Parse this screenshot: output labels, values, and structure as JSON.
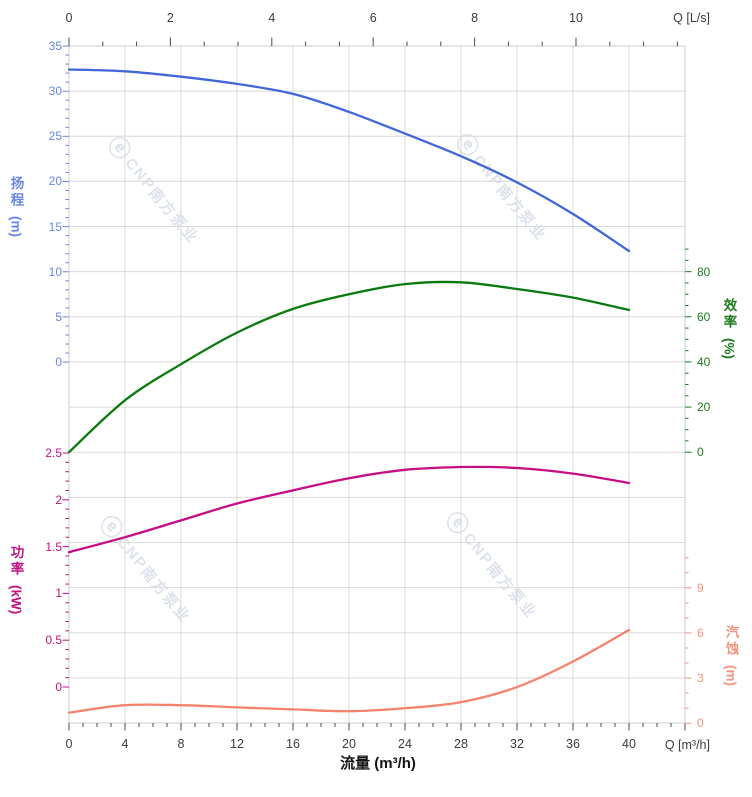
{
  "watermark": {
    "logo": "ⓔ",
    "brand": "CNP",
    "brand_cn": "南方泵业"
  },
  "axes": {
    "top": {
      "unit_label": "Q [L/s]",
      "ticks": [
        0,
        2,
        4,
        6,
        8,
        10
      ]
    },
    "bottom": {
      "unit_label": "Q [m³/h]",
      "title": "流量 (m³/h)",
      "ticks": [
        0,
        4,
        8,
        12,
        16,
        20,
        24,
        28,
        32,
        36,
        40
      ]
    },
    "head": {
      "label": "扬程",
      "unit": "(m)",
      "ticks": [
        35,
        30,
        25,
        20,
        15,
        10,
        5,
        0
      ]
    },
    "power": {
      "label": "功率",
      "unit": "(kW)",
      "ticks": [
        2.5,
        2,
        1.5,
        1,
        0.5,
        0
      ]
    },
    "efficiency": {
      "label": "效率",
      "unit": "(%)",
      "ticks": [
        80,
        60,
        40,
        20,
        0
      ]
    },
    "npsh": {
      "label": "汽蚀",
      "unit": "(m)",
      "ticks": [
        9,
        6,
        3,
        0
      ]
    }
  },
  "chart_data": {
    "type": "line",
    "title": "",
    "xlabel": "流量 (m³/h)",
    "x_axis_units": [
      "m³/h",
      "L/s"
    ],
    "x": [
      0,
      4,
      8,
      12,
      16,
      20,
      24,
      28,
      32,
      36,
      40
    ],
    "x_range_m3h": [
      0,
      44
    ],
    "x_range_ls_labeled": [
      0,
      10
    ],
    "grid": true,
    "series": [
      {
        "name": "扬程",
        "unit": "m",
        "axis": "head",
        "color": "#4166d8",
        "values": [
          32.4,
          32.2,
          31.6,
          30.8,
          29.7,
          27.7,
          25.3,
          22.8,
          19.9,
          16.4,
          12.3
        ],
        "axis_range": [
          0,
          35
        ]
      },
      {
        "name": "效率",
        "unit": "%",
        "axis": "efficiency",
        "color": "#0a7a0f",
        "values": [
          0,
          23,
          39,
          53,
          63.5,
          70,
          74.5,
          75.3,
          72.3,
          68.5,
          63
        ],
        "axis_range": [
          0,
          80
        ]
      },
      {
        "name": "功率",
        "unit": "kW",
        "axis": "power",
        "color": "#c60d86",
        "values": [
          1.44,
          1.6,
          1.78,
          1.96,
          2.1,
          2.23,
          2.32,
          2.35,
          2.34,
          2.28,
          2.18
        ],
        "axis_range": [
          0,
          2.5
        ]
      },
      {
        "name": "汽蚀",
        "unit": "m",
        "axis": "npsh",
        "color": "#f5826d",
        "values": [
          0.7,
          1.2,
          1.2,
          1.05,
          0.92,
          0.8,
          1.0,
          1.4,
          2.4,
          4.1,
          6.2
        ],
        "axis_range": [
          0,
          9
        ]
      }
    ]
  }
}
